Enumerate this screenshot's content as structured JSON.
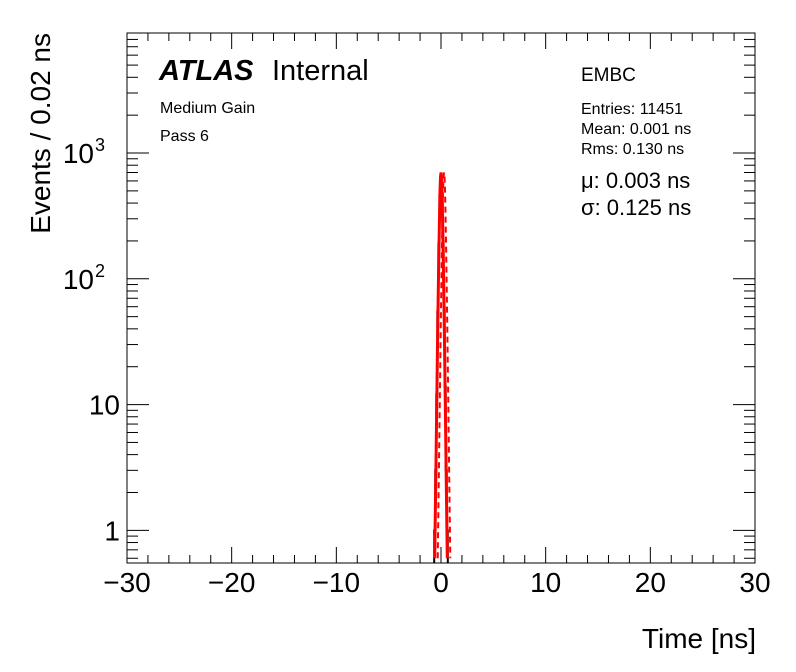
{
  "chart_data": {
    "type": "line",
    "title": "",
    "xlabel": "Time [ns]",
    "ylabel": "Events / 0.02 ns",
    "xlim": [
      -30,
      30
    ],
    "ylim": [
      0.55,
      9000
    ],
    "ylog": true,
    "grid": false,
    "x_ticks": [
      {
        "v": -30,
        "label": "−30"
      },
      {
        "v": -20,
        "label": "−20"
      },
      {
        "v": -10,
        "label": "−10"
      },
      {
        "v": 0,
        "label": "0"
      },
      {
        "v": 10,
        "label": "10"
      },
      {
        "v": 20,
        "label": "20"
      },
      {
        "v": 30,
        "label": "30"
      }
    ],
    "y_ticks": [
      {
        "v": 1,
        "label": "1"
      },
      {
        "v": 10,
        "label": "10"
      },
      {
        "v": 100,
        "label": "10",
        "exp": "2"
      },
      {
        "v": 1000,
        "label": "10",
        "exp": "3"
      }
    ],
    "series": [
      {
        "kind": "histogram",
        "color": "#000000",
        "x": [
          -0.6,
          -0.5,
          -0.4,
          -0.3,
          -0.2,
          -0.1,
          0.0,
          0.1,
          0.2,
          0.3,
          0.4,
          0.5,
          0.6
        ],
        "y": [
          1,
          3,
          12,
          55,
          190,
          460,
          650,
          470,
          200,
          60,
          14,
          3,
          1
        ]
      },
      {
        "kind": "fit",
        "color": "#ff0000",
        "x": [
          -0.6,
          -0.5,
          -0.4,
          -0.3,
          -0.2,
          -0.1,
          -0.05,
          0.0,
          0.05,
          0.1,
          0.2,
          0.3,
          0.4,
          0.5,
          0.6
        ],
        "y": [
          0.6,
          2.5,
          11,
          48,
          170,
          480,
          640,
          700,
          650,
          500,
          180,
          50,
          12,
          2.6,
          0.6
        ]
      }
    ],
    "annotations": {
      "brand": "ATLAS",
      "brand_suffix": "Internal",
      "line1": "Medium Gain",
      "line2": "Pass 6",
      "region": "EMBC",
      "entries": "Entries: 11451",
      "mean": "Mean: 0.001 ns",
      "rms": "Rms: 0.130 ns",
      "mu": "μ: 0.003 ns",
      "sigma": "σ: 0.125 ns"
    }
  }
}
